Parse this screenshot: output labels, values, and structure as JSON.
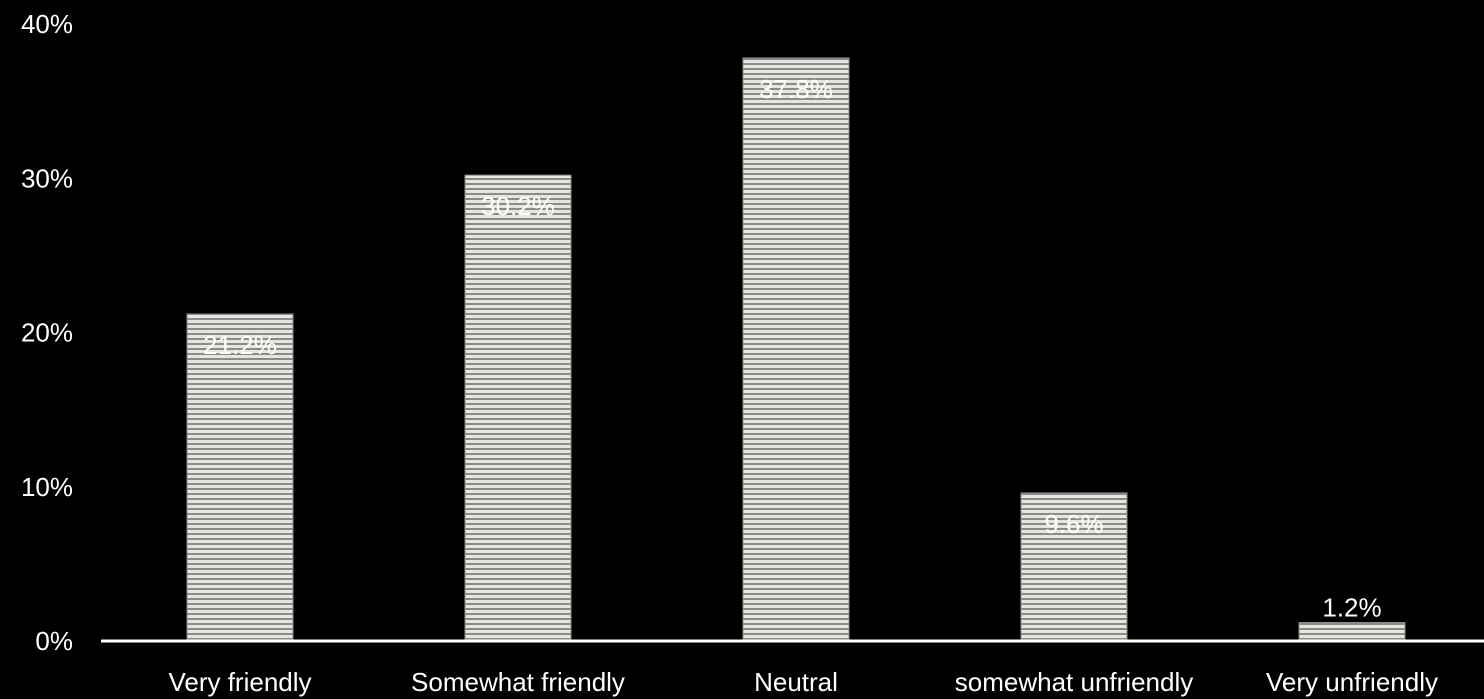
{
  "chart_data": {
    "type": "bar",
    "title": "",
    "xlabel": "",
    "ylabel": "",
    "categories": [
      "Very friendly",
      "Somewhat friendly",
      "Neutral",
      "somewhat unfriendly",
      "Very unfriendly"
    ],
    "values": [
      21.2,
      30.2,
      37.8,
      9.6,
      1.2
    ],
    "data_labels": [
      "21.2%",
      "30.2%",
      "37.8%",
      "9.6%",
      "1.2%"
    ],
    "ylim": [
      0,
      40
    ],
    "y_ticks": [
      0,
      10,
      20,
      30,
      40
    ],
    "y_tick_labels": [
      "0%",
      "10%",
      "20%",
      "30%",
      "40%"
    ],
    "grid": false,
    "legend": "none",
    "colors": {
      "background": "#000000",
      "bar_light": "#e6e6e0",
      "bar_dark": "#8c8c86",
      "axis": "#ffffff",
      "text": "#ffffff"
    }
  }
}
